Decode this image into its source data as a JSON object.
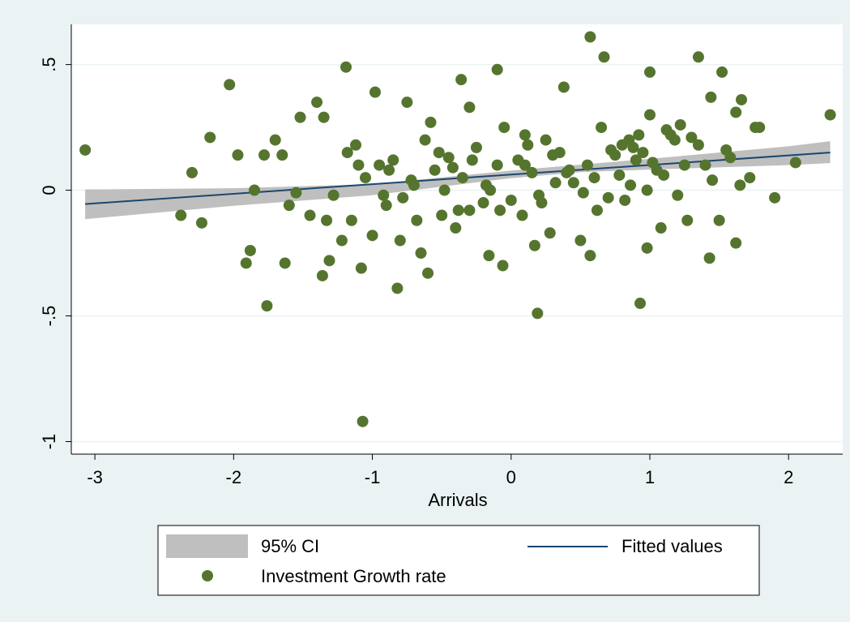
{
  "chart_data": {
    "type": "scatter",
    "xlabel": "Arrivals",
    "xlim": [
      -3.17,
      2.39
    ],
    "ylim": [
      -1.05,
      0.66
    ],
    "xticks": [
      -3,
      -2,
      -1,
      0,
      1,
      2
    ],
    "yticks": [
      {
        "value": -1,
        "label": "-1"
      },
      {
        "value": -0.5,
        "label": "-.5"
      },
      {
        "value": 0,
        "label": "0"
      },
      {
        "value": 0.5,
        "label": ".5"
      }
    ],
    "grid": true,
    "series": [
      {
        "name": "95% CI",
        "type": "area",
        "color": "#bfbfbf",
        "x": [
          -3.07,
          -2,
          -1,
          0,
          0.5,
          1,
          2,
          2.3
        ],
        "lower": [
          -0.115,
          -0.062,
          -0.02,
          0.048,
          0.072,
          0.082,
          0.1,
          0.108
        ],
        "upper": [
          0.003,
          0.008,
          0.024,
          0.078,
          0.102,
          0.125,
          0.175,
          0.195
        ]
      },
      {
        "name": "Fitted values",
        "type": "line",
        "color": "#1a476f",
        "x": [
          -3.07,
          2.3
        ],
        "values": [
          -0.055,
          0.15
        ]
      },
      {
        "name": "Investment Growth rate",
        "type": "scatter",
        "color": "#55752f",
        "x": [
          -3.07,
          -2.03,
          -1.19,
          -1.07,
          0.57,
          0.67,
          1.35,
          2.3,
          0.19,
          -1.76,
          0.93,
          -0.82,
          2.05,
          1.9,
          -2.38,
          -2.23,
          -2.3,
          -2.17,
          -1.97,
          -1.91,
          -1.88,
          -1.63,
          -1.36,
          -1.31,
          -1.08,
          -0.6,
          -0.98,
          -0.1,
          -0.36,
          0.38,
          1.0,
          1.52,
          1.44,
          1.62,
          1.79,
          0.57,
          1.43,
          1.62,
          1.5,
          1.27,
          0.17,
          -0.65,
          -0.06,
          -0.16,
          0.5,
          0.98,
          -1.52,
          -1.35,
          -0.75,
          -1.65,
          -1.78,
          -1.85,
          -1.6,
          -1.45,
          -1.33,
          -1.22,
          -1.15,
          -1.0,
          -0.9,
          -0.8,
          -1.12,
          -1.05,
          -0.95,
          -0.85,
          -0.7,
          -0.55,
          -0.45,
          -0.35,
          -0.25,
          -0.15,
          -0.05,
          0.05,
          0.15,
          0.25,
          0.35,
          0.45,
          0.55,
          0.65,
          0.75,
          0.85,
          0.95,
          1.05,
          1.15,
          1.25,
          1.35,
          1.45,
          1.55,
          1.65,
          1.72,
          -1.1,
          -0.92,
          -0.78,
          -0.62,
          -0.5,
          -0.4,
          -0.3,
          -0.2,
          -0.1,
          0.0,
          0.1,
          0.2,
          0.3,
          0.4,
          0.6,
          0.7,
          0.8,
          0.9,
          1.0,
          1.1,
          1.2,
          1.3,
          1.4,
          1.58,
          -1.18,
          -0.88,
          -0.68,
          -0.48,
          -0.28,
          -0.08,
          0.12,
          0.32,
          0.52,
          0.72,
          0.82,
          0.92,
          1.02,
          1.12,
          0.62,
          0.78,
          0.88,
          -0.58,
          -0.38,
          -0.18,
          0.08,
          0.28,
          -1.28,
          -1.4,
          -1.7,
          -1.55,
          -0.72,
          -0.42,
          0.42,
          0.98,
          1.08,
          1.18,
          1.76,
          1.66,
          -0.3,
          0.22,
          0.86,
          1.22,
          -0.52,
          0.1
        ],
        "values": [
          0.16,
          0.42,
          0.49,
          -0.92,
          0.61,
          0.53,
          0.53,
          0.3,
          -0.49,
          -0.46,
          -0.45,
          -0.39,
          0.11,
          -0.03,
          -0.1,
          -0.13,
          0.07,
          0.21,
          0.14,
          -0.29,
          -0.24,
          -0.29,
          -0.34,
          -0.28,
          -0.31,
          -0.33,
          0.39,
          0.48,
          0.44,
          0.41,
          0.47,
          0.47,
          0.37,
          0.31,
          0.25,
          -0.26,
          -0.27,
          -0.21,
          -0.12,
          -0.12,
          -0.22,
          -0.25,
          -0.3,
          -0.26,
          -0.2,
          -0.23,
          0.29,
          0.29,
          0.35,
          0.14,
          0.14,
          0.0,
          -0.06,
          -0.1,
          -0.12,
          -0.2,
          -0.12,
          -0.18,
          -0.06,
          -0.2,
          0.18,
          0.05,
          0.1,
          0.12,
          0.02,
          0.08,
          0.13,
          0.05,
          0.17,
          0.0,
          0.25,
          0.12,
          0.07,
          0.2,
          0.15,
          0.03,
          0.1,
          0.25,
          0.14,
          0.2,
          0.15,
          0.08,
          0.22,
          0.1,
          0.18,
          0.04,
          0.16,
          0.02,
          0.05,
          0.1,
          -0.02,
          -0.03,
          0.2,
          -0.1,
          -0.15,
          0.33,
          -0.05,
          0.1,
          -0.04,
          0.22,
          -0.02,
          0.14,
          0.07,
          0.05,
          -0.03,
          0.18,
          0.12,
          0.3,
          0.06,
          -0.02,
          0.21,
          0.1,
          0.13,
          0.15,
          0.08,
          -0.12,
          0.0,
          0.12,
          -0.08,
          0.18,
          0.03,
          -0.01,
          0.16,
          -0.04,
          0.22,
          0.11,
          0.24,
          -0.08,
          0.06,
          0.17,
          0.27,
          -0.08,
          0.02,
          -0.1,
          -0.17,
          -0.02,
          0.35,
          0.2,
          -0.01,
          0.04,
          0.09,
          0.08,
          0.0,
          -0.15,
          0.2,
          0.25,
          0.36,
          -0.08,
          -0.05,
          0.02,
          0.26,
          0.15,
          0.1
        ]
      }
    ]
  }
}
